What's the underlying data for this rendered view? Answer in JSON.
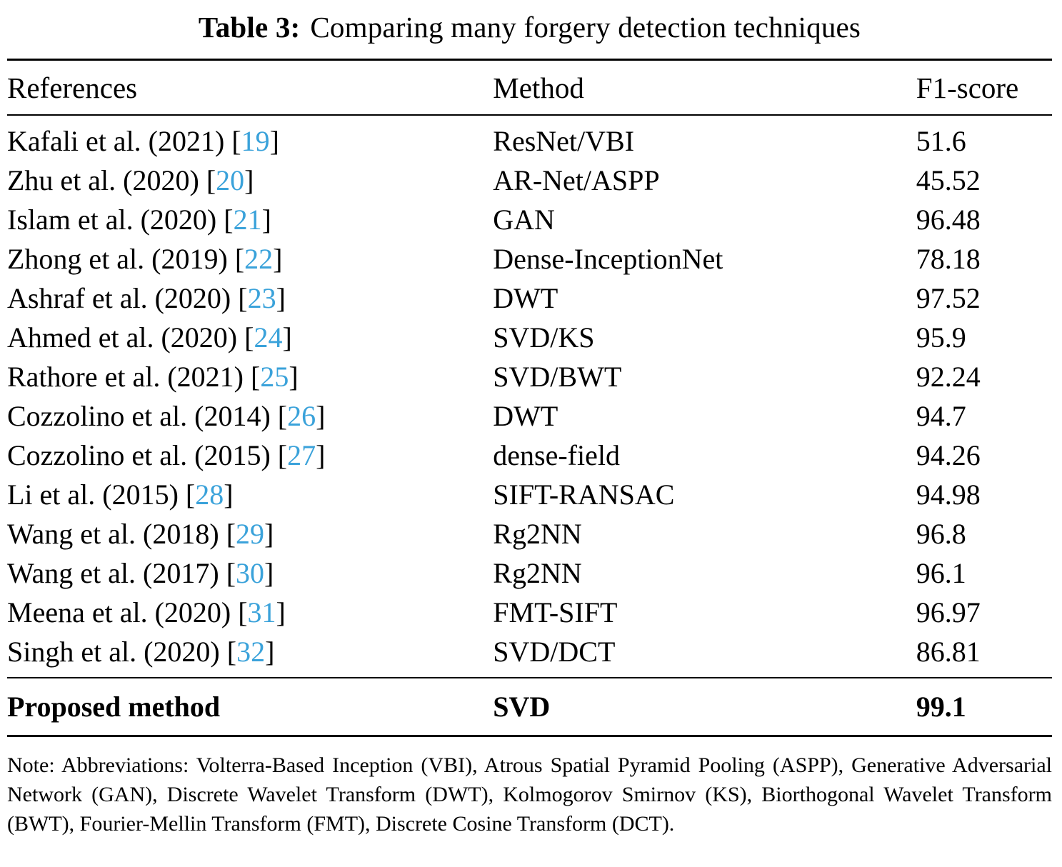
{
  "title": {
    "label": "Table 3:",
    "text": "Comparing many forgery detection techniques"
  },
  "columns": {
    "references": "References",
    "method": "Method",
    "f1": "F1-score"
  },
  "rows": [
    {
      "ref": "Kafali et al. (2021)",
      "cite": "19",
      "method": "ResNet/VBI",
      "f1": "51.6"
    },
    {
      "ref": "Zhu et al. (2020)",
      "cite": "20",
      "method": "AR-Net/ASPP",
      "f1": "45.52"
    },
    {
      "ref": "Islam et al. (2020)",
      "cite": "21",
      "method": "GAN",
      "f1": "96.48"
    },
    {
      "ref": "Zhong et al. (2019)",
      "cite": "22",
      "method": "Dense-InceptionNet",
      "f1": "78.18"
    },
    {
      "ref": "Ashraf et al. (2020)",
      "cite": "23",
      "method": "DWT",
      "f1": "97.52"
    },
    {
      "ref": "Ahmed et al. (2020)",
      "cite": "24",
      "method": "SVD/KS",
      "f1": "95.9"
    },
    {
      "ref": "Rathore et al. (2021)",
      "cite": "25",
      "method": "SVD/BWT",
      "f1": "92.24"
    },
    {
      "ref": "Cozzolino et al. (2014)",
      "cite": "26",
      "method": "DWT",
      "f1": "94.7"
    },
    {
      "ref": "Cozzolino et al. (2015)",
      "cite": "27",
      "method": "dense-field",
      "f1": "94.26"
    },
    {
      "ref": "Li et al. (2015)",
      "cite": "28",
      "method": "SIFT-RANSAC",
      "f1": "94.98"
    },
    {
      "ref": "Wang et al. (2018)",
      "cite": "29",
      "method": "Rg2NN",
      "f1": "96.8"
    },
    {
      "ref": "Wang et al. (2017)",
      "cite": "30",
      "method": "Rg2NN",
      "f1": "96.1"
    },
    {
      "ref": "Meena et al. (2020)",
      "cite": "31",
      "method": "FMT-SIFT",
      "f1": "96.97"
    },
    {
      "ref": "Singh et al. (2020)",
      "cite": "32",
      "method": "SVD/DCT",
      "f1": "86.81"
    }
  ],
  "proposed": {
    "ref": "Proposed method",
    "method": "SVD",
    "f1": "99.1"
  },
  "note": "Note: Abbreviations: Volterra-Based Inception (VBI), Atrous Spatial Pyramid Pooling (ASPP), Generative Adversarial Network (GAN), Discrete Wavelet Transform (DWT), Kolmogorov Smirnov (KS), Biorthogonal Wavelet Transform (BWT), Fourier-Mellin Transform (FMT), Discrete Cosine Transform (DCT).",
  "colors": {
    "citation_link": "#3AA2DA"
  }
}
